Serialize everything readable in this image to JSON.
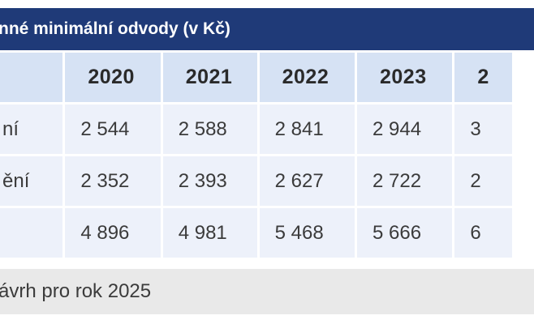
{
  "table": {
    "title": "nné minimální odvody (v Kč)",
    "columns": [
      "2020",
      "2021",
      "2022",
      "2023",
      "2"
    ],
    "rows": [
      {
        "label": "ní",
        "values": [
          "2 544",
          "2 588",
          "2 841",
          "2 944",
          "3"
        ]
      },
      {
        "label": "ění",
        "values": [
          "2 352",
          "2 393",
          "2 627",
          "2 722",
          "2"
        ]
      },
      {
        "label": "",
        "values": [
          "4 896",
          "4 981",
          "5 468",
          "5 666",
          "6"
        ]
      }
    ],
    "footnote": "ávrh pro rok 2025"
  },
  "colors": {
    "title_bg": "#1f3a78",
    "header_bg": "#d6e2f4",
    "cell_bg": "#edf1fa",
    "footnote_bg": "#e9e9e9"
  }
}
